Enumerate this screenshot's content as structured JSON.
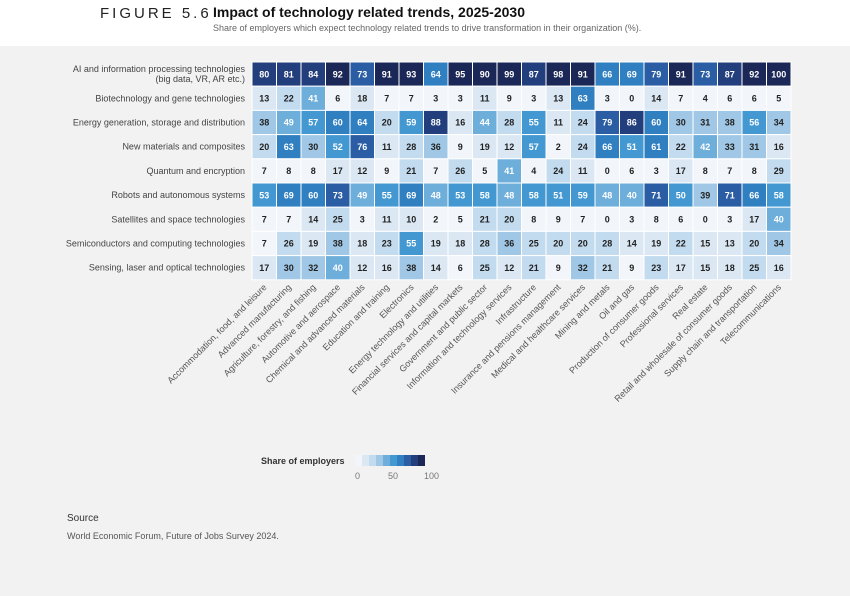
{
  "header": {
    "figure_label": "FIGURE 5.6",
    "title": "Impact of technology related trends, 2025-2030",
    "subtitle": "Share of employers which expect  technology related trends to drive transformation in their organization (%)."
  },
  "chart_data": {
    "type": "heatmap",
    "rows": [
      [
        "AI and information processing technologies",
        "(big data, VR, AR etc.)"
      ],
      [
        "Biotechnology and gene technologies"
      ],
      [
        "Energy generation, storage and distribution"
      ],
      [
        "New materials and composites"
      ],
      [
        "Quantum and encryption"
      ],
      [
        "Robots and autonomous systems"
      ],
      [
        "Satellites and space technologies"
      ],
      [
        "Semiconductors and computing technologies"
      ],
      [
        "Sensing, laser and optical technologies"
      ]
    ],
    "columns": [
      "Accommodation, food, and leisure",
      "Advanced manufacturing",
      "Agriculture, forestry, and fishing",
      "Automotive and aerospace",
      "Chemical and advanced materials",
      "Education and training",
      "Electronics",
      "Energy technology and utilities",
      "Financial services and capital markets",
      "Government and public sector",
      "Information and technology services",
      "Infrastructure",
      "Insurance and pensions management",
      "Medical and healthcare services",
      "Mining and metals",
      "Oil and gas",
      "Production of consumer goods",
      "Professional services",
      "Real estate",
      "Retail and wholesale of consumer goods",
      "Supply chain and transportation",
      "Telecommunications"
    ],
    "values": [
      [
        80,
        81,
        84,
        92,
        73,
        91,
        93,
        64,
        95,
        90,
        99,
        87,
        98,
        91,
        66,
        69,
        79,
        91,
        73,
        87,
        92,
        100
      ],
      [
        13,
        22,
        41,
        6,
        18,
        7,
        7,
        3,
        3,
        11,
        9,
        3,
        13,
        63,
        3,
        0,
        14,
        7,
        4,
        6,
        6,
        5
      ],
      [
        38,
        49,
        57,
        60,
        64,
        20,
        59,
        88,
        16,
        44,
        28,
        55,
        11,
        24,
        79,
        86,
        60,
        30,
        31,
        38,
        56,
        34
      ],
      [
        20,
        63,
        30,
        52,
        76,
        11,
        28,
        36,
        9,
        19,
        12,
        57,
        2,
        24,
        66,
        51,
        61,
        22,
        42,
        33,
        31,
        16
      ],
      [
        7,
        8,
        8,
        17,
        12,
        9,
        21,
        7,
        26,
        5,
        41,
        4,
        24,
        11,
        0,
        6,
        3,
        17,
        8,
        7,
        8,
        29
      ],
      [
        53,
        69,
        60,
        73,
        49,
        55,
        69,
        48,
        53,
        58,
        48,
        58,
        51,
        59,
        48,
        40,
        71,
        50,
        39,
        71,
        66,
        58
      ],
      [
        7,
        7,
        14,
        25,
        3,
        11,
        10,
        2,
        5,
        21,
        20,
        8,
        9,
        7,
        0,
        3,
        8,
        6,
        0,
        3,
        17,
        40
      ],
      [
        7,
        26,
        19,
        38,
        18,
        23,
        55,
        19,
        18,
        28,
        36,
        25,
        20,
        20,
        28,
        14,
        19,
        22,
        15,
        13,
        20,
        34
      ],
      [
        17,
        30,
        32,
        40,
        12,
        16,
        38,
        14,
        6,
        25,
        12,
        21,
        9,
        32,
        21,
        9,
        23,
        17,
        15,
        18,
        25,
        16
      ]
    ],
    "color_scale": [
      "#f2f6fb",
      "#dbe8f4",
      "#c3dbef",
      "#a0c8e6",
      "#6daedb",
      "#4398d2",
      "#2f7fc1",
      "#2a5da3",
      "#233e7c",
      "#1b2756"
    ],
    "legend": {
      "title": "Share of employers",
      "min": 0,
      "mid": 50,
      "max": 100
    }
  },
  "source": {
    "title": "Source",
    "text": "World Economic Forum, Future of Jobs Survey 2024."
  }
}
